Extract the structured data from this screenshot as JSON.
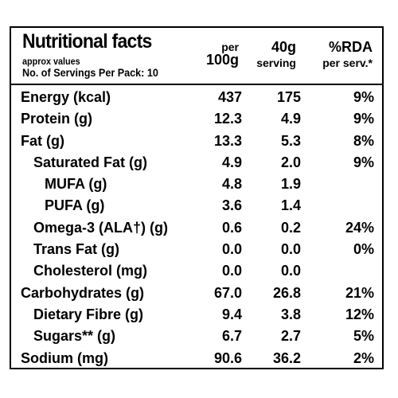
{
  "label": {
    "title": "Nutritional facts",
    "note": "approx values",
    "servings": "No. of Servings Per Pack: 10",
    "col_per": "per",
    "col_100g": "100g",
    "col_40g": "40g",
    "col_serving": "serving",
    "col_rda": "%RDA",
    "col_per_serv": "per serv.*"
  },
  "rows": [
    {
      "name": "Energy (kcal)",
      "per100": "437",
      "serving": "175",
      "rda": "9%"
    },
    {
      "name": "Protein (g)",
      "per100": "12.3",
      "serving": "4.9",
      "rda": "9%"
    },
    {
      "name": "Fat (g)",
      "per100": "13.3",
      "serving": "5.3",
      "rda": "8%"
    },
    {
      "name": "Saturated Fat (g)",
      "per100": "4.9",
      "serving": "2.0",
      "rda": "9%"
    },
    {
      "name": "MUFA (g)",
      "per100": "4.8",
      "serving": "1.9",
      "rda": ""
    },
    {
      "name": "PUFA (g)",
      "per100": "3.6",
      "serving": "1.4",
      "rda": ""
    },
    {
      "name": "Omega-3 (ALA†) (g)",
      "per100": "0.6",
      "serving": "0.2",
      "rda": "24%"
    },
    {
      "name": "Trans Fat (g)",
      "per100": "0.0",
      "serving": "0.0",
      "rda": "0%"
    },
    {
      "name": "Cholesterol (mg)",
      "per100": "0.0",
      "serving": "0.0",
      "rda": ""
    },
    {
      "name": "Carbohydrates (g)",
      "per100": "67.0",
      "serving": "26.8",
      "rda": "21%"
    },
    {
      "name": "Dietary Fibre (g)",
      "per100": "9.4",
      "serving": "3.8",
      "rda": "12%"
    },
    {
      "name": "Sugars** (g)",
      "per100": "6.7",
      "serving": "2.7",
      "rda": "5%"
    },
    {
      "name": "Sodium (mg)",
      "per100": "90.6",
      "serving": "36.2",
      "rda": "2%"
    }
  ]
}
